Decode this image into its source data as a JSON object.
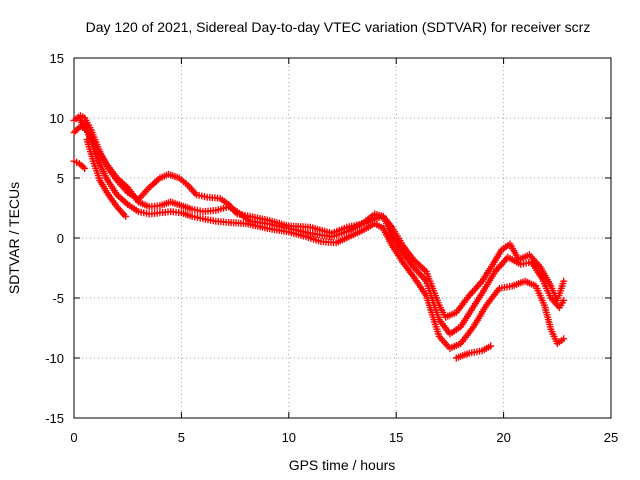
{
  "chart_data": {
    "type": "scatter",
    "title": "Day 120 of 2021, Sidereal Day-to-day VTEC variation (SDTVAR) for receiver scrz",
    "xlabel": "GPS time / hours",
    "ylabel": "SDTVAR / TECUs",
    "xlim": [
      0,
      25
    ],
    "ylim": [
      -15,
      15
    ],
    "xticks": [
      0,
      5,
      10,
      15,
      20,
      25
    ],
    "yticks": [
      -15,
      -10,
      -5,
      0,
      5,
      10,
      15
    ],
    "xtick_labels": [
      "0",
      "5",
      "10",
      "15",
      "20",
      "25"
    ],
    "ytick_labels": [
      "-15",
      "-10",
      "-5",
      "0",
      "5",
      "10",
      "15"
    ],
    "grid": true,
    "marker": "+",
    "color": "#ff0000",
    "series": [
      {
        "name": "track-1",
        "x": [
          0.0,
          0.3,
          0.5,
          0.8,
          1.2,
          1.6,
          2.0,
          2.5,
          3.0,
          3.5,
          4.0,
          4.4,
          4.9,
          5.3,
          5.7,
          6.2,
          6.8,
          7.2,
          7.6,
          8.2,
          9.0,
          10.0,
          11.0,
          12.0,
          12.7,
          13.5,
          14.0,
          14.4,
          14.8,
          15.3,
          15.8,
          16.4,
          17.0,
          17.3,
          17.8,
          18.4,
          19.0,
          19.5,
          19.9,
          20.3,
          20.7,
          21.2,
          21.7,
          22.2,
          22.5,
          22.8
        ],
        "y": [
          9.8,
          10.2,
          10.0,
          9.0,
          7.2,
          5.8,
          4.8,
          3.8,
          3.2,
          4.2,
          5.0,
          5.3,
          5.0,
          4.4,
          3.6,
          3.4,
          3.3,
          2.8,
          2.0,
          1.8,
          1.5,
          1.0,
          0.9,
          0.4,
          0.9,
          1.2,
          1.6,
          1.8,
          0.9,
          -0.6,
          -1.8,
          -2.8,
          -5.6,
          -6.6,
          -6.2,
          -4.8,
          -3.6,
          -2.2,
          -1.0,
          -0.5,
          -1.8,
          -1.4,
          -2.4,
          -4.0,
          -5.2,
          -3.6
        ]
      },
      {
        "name": "track-2",
        "x": [
          0.0,
          0.3,
          0.6,
          1.0,
          1.5,
          2.0,
          2.5,
          3.0,
          3.5,
          4.0,
          4.5,
          5.0,
          5.5,
          6.0,
          6.6,
          7.2,
          7.6,
          8.2,
          9.0,
          10.0,
          11.0,
          12.0,
          12.8,
          13.5,
          14.0,
          14.4,
          14.8,
          15.3,
          15.8,
          16.4,
          17.0,
          17.5,
          18.0,
          18.5,
          19.0,
          19.6,
          20.2,
          20.8,
          21.3,
          21.8,
          22.2,
          22.6,
          22.8
        ],
        "y": [
          8.8,
          9.3,
          9.0,
          7.6,
          6.2,
          5.0,
          4.2,
          3.0,
          2.6,
          2.7,
          3.0,
          2.7,
          2.4,
          2.2,
          2.3,
          2.6,
          2.2,
          1.4,
          1.2,
          0.8,
          0.4,
          0.1,
          0.6,
          1.3,
          2.0,
          1.8,
          0.2,
          -1.2,
          -2.4,
          -3.6,
          -6.8,
          -8.0,
          -7.4,
          -6.0,
          -4.6,
          -2.8,
          -1.6,
          -2.2,
          -2.0,
          -3.4,
          -5.0,
          -5.8,
          -5.2
        ]
      },
      {
        "name": "track-3",
        "x": [
          0.3,
          0.6,
          1.0,
          1.5,
          2.0,
          2.5,
          3.0,
          3.5,
          4.0,
          4.5,
          5.0,
          5.5,
          6.0,
          6.6,
          7.2,
          8.0,
          9.0,
          10.0,
          10.8,
          11.5,
          12.2,
          12.8,
          13.4,
          14.0,
          14.4,
          14.8,
          15.3,
          15.8,
          16.4,
          17.0,
          17.5,
          18.0,
          18.6,
          19.2,
          19.8,
          20.4,
          21.0,
          21.5,
          21.9,
          22.2,
          22.5,
          22.8
        ],
        "y": [
          9.8,
          9.0,
          7.0,
          5.0,
          3.6,
          2.8,
          2.2,
          2.0,
          2.1,
          2.2,
          2.1,
          1.8,
          1.6,
          1.4,
          1.3,
          1.2,
          0.8,
          0.5,
          0.1,
          -0.3,
          -0.4,
          0.1,
          0.6,
          1.2,
          0.8,
          -0.6,
          -2.0,
          -3.2,
          -4.8,
          -8.2,
          -9.2,
          -8.8,
          -7.4,
          -5.6,
          -4.2,
          -4.0,
          -3.6,
          -4.0,
          -5.6,
          -7.6,
          -8.8,
          -8.4
        ]
      },
      {
        "name": "track-4",
        "x": [
          0.0,
          0.25,
          0.5
        ],
        "y": [
          6.4,
          6.2,
          5.8
        ]
      },
      {
        "name": "track-5",
        "x": [
          0.6,
          0.9,
          1.2,
          1.6,
          2.0,
          2.4
        ],
        "y": [
          8.2,
          6.4,
          4.8,
          3.6,
          2.6,
          1.8
        ]
      },
      {
        "name": "track-6",
        "x": [
          17.8,
          18.4,
          19.0,
          19.4
        ],
        "y": [
          -10.0,
          -9.6,
          -9.4,
          -9.0
        ]
      }
    ]
  }
}
